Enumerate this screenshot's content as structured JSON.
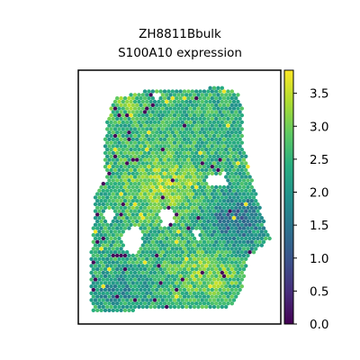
{
  "chart_data": {
    "type": "scatter",
    "subtype": "spatial-hex-scatter",
    "title": "ZH8811Bbulk",
    "subtitle": "S100A10 expression",
    "xlabel": "",
    "ylabel": "",
    "colorbar": {
      "label": "",
      "range": [
        0.0,
        3.85
      ],
      "colormap": "viridis",
      "ticks": [
        0.0,
        0.5,
        1.0,
        1.5,
        2.0,
        2.5,
        3.0,
        3.5
      ],
      "tick_labels": [
        "0.0",
        "0.5",
        "1.0",
        "1.5",
        "2.0",
        "2.5",
        "3.0",
        "3.5"
      ]
    },
    "grid": false,
    "legend": "colorbar-right",
    "value_distribution": {
      "typical_range": [
        1.5,
        3.2
      ],
      "high_regions": [
        "upper-left tissue edge",
        "center",
        "lower-center"
      ],
      "low_regions": [
        "right lobe",
        "scattered zero-expression spots along left edge"
      ]
    }
  },
  "colors": {
    "frame": "#000000",
    "background": "#ffffff"
  }
}
